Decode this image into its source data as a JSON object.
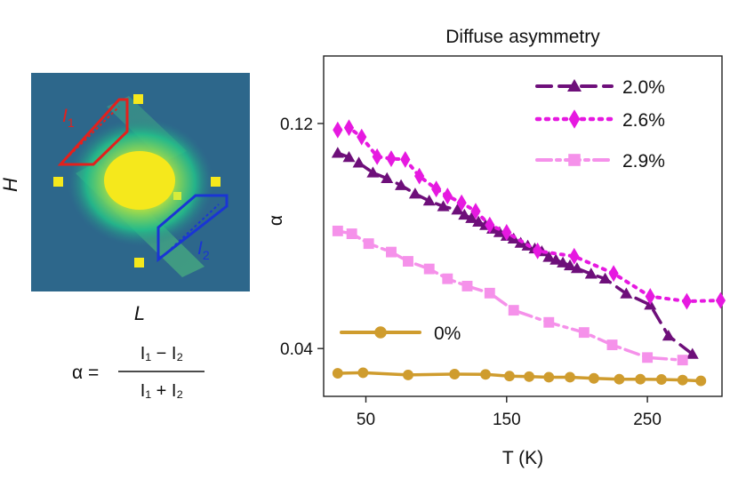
{
  "left_panel": {
    "ylabel": "H",
    "xlabel": "L",
    "region1_label": "I",
    "region1_sub": "1",
    "region2_label": "I",
    "region2_sub": "2",
    "formula": {
      "lhs": "α =",
      "numerator": "I₁ − I₂",
      "denominator": "I₁ + I₂"
    },
    "colors": {
      "background": "#2a5d8a",
      "glow": "#22c08a",
      "peak": "#f5e81c",
      "region1": "#e3201c",
      "region2": "#1a35d4"
    }
  },
  "chart_data": {
    "type": "line",
    "title": "Diffuse asymmetry",
    "xlabel": "T (K)",
    "ylabel": "α",
    "xlim": [
      20,
      303
    ],
    "ylim": [
      0.023,
      0.144
    ],
    "xticks": [
      50,
      150,
      250
    ],
    "yticks": [
      0.04,
      0.12
    ],
    "ytick_labels": [
      "0.04",
      "0.12"
    ],
    "grid": false,
    "legend_position": "top-right",
    "series": [
      {
        "name": "2.0%",
        "color": "#6e0f7a",
        "marker": "triangle",
        "linestyle": "dashed",
        "x": [
          30,
          38,
          45,
          55,
          65,
          75,
          85,
          95,
          105,
          115,
          120,
          125,
          130,
          135,
          140,
          145,
          150,
          155,
          160,
          165,
          170,
          175,
          180,
          185,
          190,
          195,
          200,
          210,
          220,
          235,
          252,
          265,
          282
        ],
        "y": [
          0.1095,
          0.108,
          0.106,
          0.1025,
          0.1005,
          0.098,
          0.095,
          0.0925,
          0.0905,
          0.0893,
          0.0875,
          0.0863,
          0.085,
          0.0838,
          0.0825,
          0.0813,
          0.08,
          0.079,
          0.0775,
          0.0765,
          0.0755,
          0.0745,
          0.0725,
          0.0715,
          0.0705,
          0.0695,
          0.0685,
          0.0665,
          0.0648,
          0.0595,
          0.0555,
          0.0445,
          0.038
        ]
      },
      {
        "name": "2.6%",
        "color": "#e619e0",
        "marker": "diamond",
        "linestyle": "dotted",
        "x": [
          30,
          38,
          47,
          58,
          68,
          78,
          88,
          100,
          108,
          118,
          128,
          138,
          150,
          172,
          198,
          226,
          252,
          278,
          302
        ],
        "y": [
          0.1177,
          0.1185,
          0.1152,
          0.1082,
          0.1075,
          0.1072,
          0.1013,
          0.0967,
          0.0942,
          0.0918,
          0.0888,
          0.0839,
          0.0813,
          0.0747,
          0.0728,
          0.0667,
          0.0585,
          0.0568,
          0.0571
        ]
      },
      {
        "name": "2.9%",
        "color": "#f591ea",
        "marker": "square",
        "linestyle": "dashdot",
        "x": [
          30,
          40,
          52,
          68,
          80,
          95,
          108,
          122,
          138,
          155,
          180,
          205,
          225,
          250,
          275
        ],
        "y": [
          0.0818,
          0.0808,
          0.0773,
          0.0743,
          0.071,
          0.0683,
          0.0648,
          0.0622,
          0.0597,
          0.0536,
          0.0493,
          0.0457,
          0.0413,
          0.0368,
          0.0359
        ]
      },
      {
        "name": "0%",
        "color": "#cf9c2e",
        "marker": "circle",
        "linestyle": "solid",
        "x": [
          30,
          48,
          80,
          113,
          135,
          152,
          166,
          180,
          195,
          212,
          230,
          245,
          260,
          275,
          288
        ],
        "y": [
          0.0312,
          0.0314,
          0.0306,
          0.0309,
          0.0308,
          0.0302,
          0.03,
          0.0298,
          0.0298,
          0.0294,
          0.0291,
          0.0291,
          0.029,
          0.0288,
          0.0285
        ]
      }
    ]
  }
}
